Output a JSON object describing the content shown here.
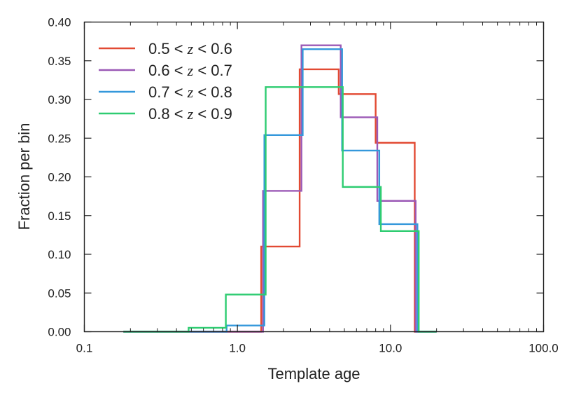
{
  "chart_data": {
    "type": "histogram-step",
    "title": "",
    "xlabel": "Template age",
    "ylabel": "Fraction per bin",
    "xscale": "log",
    "xlim": [
      0.1,
      100.0
    ],
    "ylim": [
      0.0,
      0.4
    ],
    "xticks": [
      {
        "value": 0.1,
        "label": "0.1"
      },
      {
        "value": 1.0,
        "label": "1.0"
      },
      {
        "value": 10.0,
        "label": "10.0"
      },
      {
        "value": 100.0,
        "label": "100.0"
      }
    ],
    "yticks": [
      {
        "value": 0.0,
        "label": "0.00"
      },
      {
        "value": 0.05,
        "label": "0.05"
      },
      {
        "value": 0.1,
        "label": "0.10"
      },
      {
        "value": 0.15,
        "label": "0.15"
      },
      {
        "value": 0.2,
        "label": "0.20"
      },
      {
        "value": 0.25,
        "label": "0.25"
      },
      {
        "value": 0.3,
        "label": "0.30"
      },
      {
        "value": 0.35,
        "label": "0.35"
      },
      {
        "value": 0.4,
        "label": "0.40"
      }
    ],
    "grid": false,
    "legend_position": "top-left",
    "series": [
      {
        "name": "0.5 < z < 0.6",
        "label_prefix": "0.5 < ",
        "label_var": "z",
        "label_suffix": " < 0.6",
        "color": "#e24a33",
        "edges": [
          0.18,
          1.43,
          2.55,
          4.59,
          8.0,
          14.4,
          20.0
        ],
        "values": [
          0.0,
          0.11,
          0.339,
          0.307,
          0.244,
          0.0
        ]
      },
      {
        "name": "0.6 < z < 0.7",
        "label_prefix": "0.6 < ",
        "label_var": "z",
        "label_suffix": " < 0.7",
        "color": "#9b59b6",
        "edges": [
          0.18,
          1.47,
          2.62,
          4.73,
          8.2,
          14.6,
          20.0
        ],
        "values": [
          0.0,
          0.182,
          0.37,
          0.277,
          0.169,
          0.0
        ]
      },
      {
        "name": "0.7 < z < 0.8",
        "label_prefix": "0.7 < ",
        "label_var": "z",
        "label_suffix": " < 0.8",
        "color": "#3498db",
        "edges": [
          0.18,
          0.85,
          1.5,
          2.67,
          4.83,
          8.45,
          15.0,
          20.0
        ],
        "values": [
          0.0,
          0.008,
          0.254,
          0.365,
          0.234,
          0.139,
          0.0
        ]
      },
      {
        "name": "0.8 < z < 0.9",
        "label_prefix": "0.8 < ",
        "label_var": "z",
        "label_suffix": " < 0.9",
        "color": "#2ecc71",
        "edges": [
          0.18,
          0.48,
          0.84,
          1.53,
          4.88,
          8.65,
          15.3,
          20.0
        ],
        "values": [
          0.0,
          0.005,
          0.048,
          0.316,
          0.187,
          0.13,
          0.0
        ]
      }
    ]
  }
}
